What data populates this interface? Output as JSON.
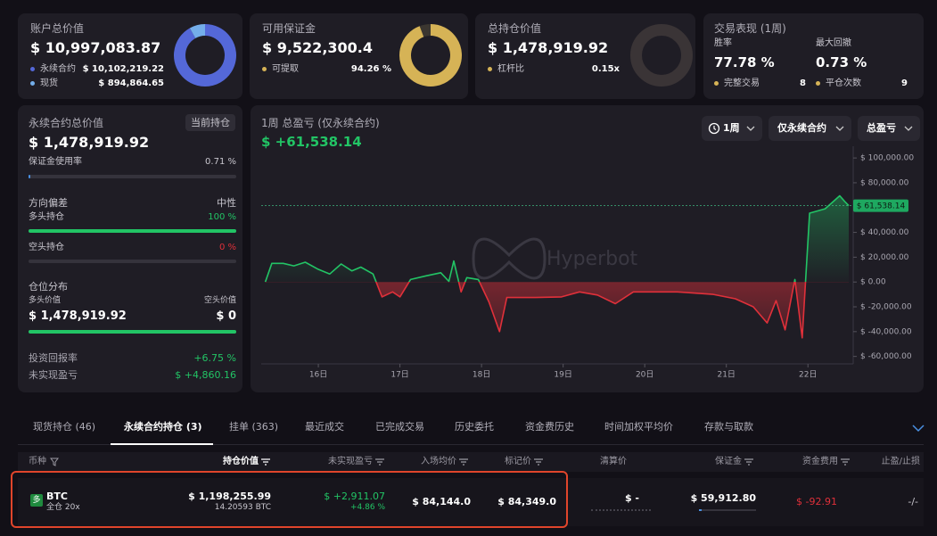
{
  "summary_cards": [
    {
      "title": "账户总价值",
      "value": "$ 10,997,083.87",
      "rows": [
        "永续合约",
        "现货"
      ],
      "values": [
        10102219.22,
        894864.65
      ],
      "value_labels": [
        "$ 10,102,219.22",
        "$ 894,864.65"
      ],
      "colors": [
        "#5468d8",
        "#74aeea"
      ],
      "donut": "share"
    },
    {
      "title": "可用保证金",
      "value": "$ 9,522,300.4",
      "rows": [
        "可提取"
      ],
      "values": [
        94.26
      ],
      "value_labels": [
        "94.26 %"
      ],
      "colors": [
        "#d6b356"
      ],
      "donut": "percent"
    },
    {
      "title": "总持仓价值",
      "value": "$ 1,478,919.92",
      "rows": [
        "杠杆比"
      ],
      "values": [
        0.15
      ],
      "value_labels": [
        "0.15x"
      ],
      "colors": [
        "#d6b356"
      ],
      "donut": "ring"
    }
  ],
  "performance": {
    "title": "交易表现 (1周)",
    "stats": [
      {
        "label": "胜率",
        "value": "77.78 %"
      },
      {
        "label": "最大回撤",
        "value": "0.73 %"
      }
    ],
    "rows": [
      "完整交易",
      "平仓次数"
    ],
    "values": [
      8,
      9
    ],
    "color": "#d6b356"
  },
  "perp_panel": {
    "title": "永续合约总价值",
    "badge": "当前持仓",
    "value": "$ 1,478,919.92",
    "margin": {
      "label": "保证金使用率",
      "value": 0.71,
      "value_label": "0.71 %"
    },
    "bias": {
      "label": "方向偏差",
      "value": "中性"
    },
    "long": {
      "label": "多头持仓",
      "value": 100,
      "value_label": "100 %"
    },
    "short": {
      "label": "空头持仓",
      "value": 0,
      "value_label": "0 %"
    },
    "distribution": {
      "title": "仓位分布",
      "labels": [
        "多头价值",
        "空头价值"
      ],
      "values": [
        1478919.92,
        0
      ],
      "value_labels": [
        "$ 1,478,919.92",
        "$ 0"
      ]
    },
    "roi": {
      "label": "投资回报率",
      "value": "+6.75 %"
    },
    "unrealized": {
      "label": "未实现盈亏",
      "value": "$ +4,860.16"
    }
  },
  "chart_controls": [
    "1周",
    "仅永续合约",
    "总盈亏"
  ],
  "watermark": "Hyperbot",
  "chart_data": {
    "type": "line",
    "title": "1周 总盈亏 (仅永续合约)",
    "subtitle": "$ +61,538.14",
    "x": [
      15.35,
      15.43,
      15.57,
      15.7,
      15.84,
      15.99,
      16.14,
      16.28,
      16.41,
      16.52,
      16.67,
      16.78,
      16.91,
      17.0,
      17.13,
      17.32,
      17.5,
      17.6,
      17.66,
      17.75,
      17.82,
      17.96,
      18.09,
      18.22,
      18.31,
      18.66,
      18.98,
      19.2,
      19.42,
      19.64,
      19.86,
      20.4,
      20.84,
      21.11,
      21.33,
      21.5,
      21.61,
      21.72,
      21.84,
      21.93,
      22.02,
      22.21,
      22.39,
      22.45,
      22.5
    ],
    "values": [
      0,
      15000,
      15000,
      13000,
      16000,
      10500,
      6500,
      14500,
      9000,
      12000,
      6500,
      -12000,
      -8000,
      -12000,
      2000,
      5000,
      7500,
      500,
      17000,
      -8000,
      3500,
      2000,
      -16000,
      -40000,
      -12500,
      -12500,
      -12000,
      -8000,
      -10500,
      -17500,
      -8000,
      -8000,
      -10000,
      -13500,
      -20000,
      -33000,
      -15000,
      -38500,
      2000,
      -45000,
      55500,
      59000,
      69500,
      65000,
      61538.14
    ],
    "colors": {
      "positive": "#22c465",
      "negative": "#e0303a"
    },
    "xlim": [
      15.3,
      22.5
    ],
    "xticks": [
      {
        "value": 16,
        "label": "16日"
      },
      {
        "value": 17,
        "label": "17日"
      },
      {
        "value": 18,
        "label": "18日"
      },
      {
        "value": 19,
        "label": "19日"
      },
      {
        "value": 20,
        "label": "20日"
      },
      {
        "value": 21,
        "label": "21日"
      },
      {
        "value": 22,
        "label": "22日"
      }
    ],
    "ylim": [
      -66000,
      108000
    ],
    "yticks": [
      {
        "value": 100000,
        "label": "$ 100,000.00"
      },
      {
        "value": 80000,
        "label": "$ 80,000.00"
      },
      {
        "value": 60000,
        "label": "$ 60,000.00"
      },
      {
        "value": 40000,
        "label": "$ 40,000.00"
      },
      {
        "value": 20000,
        "label": "$ 20,000.00"
      },
      {
        "value": 0,
        "label": "$ 0.00"
      },
      {
        "value": -20000,
        "label": "$ -20,000.00"
      },
      {
        "value": -40000,
        "label": "$ -40,000.00"
      },
      {
        "value": -60000,
        "label": "$ -60,000.00"
      }
    ],
    "grid": false,
    "current": {
      "value": 61538.14,
      "label": "$ 61,538.14"
    }
  },
  "tabs": {
    "items": [
      "现货持仓 (46)",
      "永续合约持仓 (3)",
      "挂单 (363)",
      "最近成交",
      "已完成交易",
      "历史委托",
      "资金费历史",
      "时间加权平均价",
      "存款与取款"
    ],
    "active": 1
  },
  "table": {
    "headers": [
      "币种",
      "持仓价值",
      "未实现盈亏",
      "入场均价",
      "标记价",
      "清算价",
      "保证金",
      "资金费用",
      "止盈/止损"
    ],
    "rows": [
      {
        "side": "多",
        "coin": "BTC",
        "margin_mode": "全仓 20x",
        "position_value": "$ 1,198,255.99",
        "size": "14.20593 BTC",
        "pnl": "$ +2,911.07",
        "pnl_pct": "+4.86 %",
        "entry": "$ 84,144.0",
        "mark": "$ 84,349.0",
        "liquidation": "$ -",
        "margin": "$ 59,912.80",
        "funding": "$ -92.91",
        "tpsl": "-/-"
      }
    ]
  }
}
